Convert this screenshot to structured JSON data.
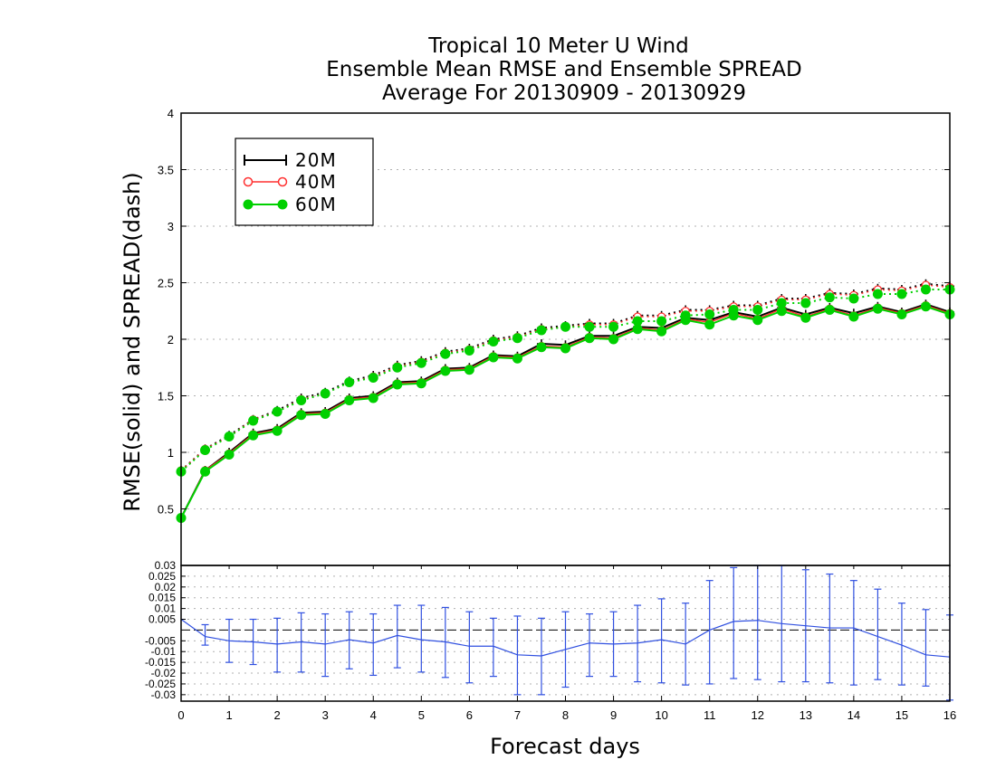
{
  "titles": {
    "line1": "Tropical 10 Meter U Wind",
    "line2": "Ensemble Mean RMSE and Ensemble SPREAD",
    "line3": "Average For 20130909 - 20130929"
  },
  "colors": {
    "20M": "#000000",
    "40M": "#ff3030",
    "60M": "#00d000",
    "diff": "#3050e0",
    "grid": "#b0b0b0"
  },
  "chart_data": [
    {
      "type": "line",
      "ylabel": "RMSE(solid) and SPREAD(dash)",
      "xlabel": "",
      "xlim": [
        0,
        16
      ],
      "ylim": [
        0,
        4
      ],
      "xticks": [
        "0",
        "1",
        "2",
        "3",
        "4",
        "5",
        "6",
        "7",
        "8",
        "9",
        "10",
        "11",
        "12",
        "13",
        "14",
        "15",
        "16"
      ],
      "yticks": [
        "0.5",
        "1",
        "1.5",
        "2",
        "2.5",
        "3",
        "3.5",
        "4"
      ],
      "grid": true,
      "legend_position": "top-left",
      "x": [
        0,
        0.5,
        1,
        1.5,
        2,
        2.5,
        3,
        3.5,
        4,
        4.5,
        5,
        5.5,
        6,
        6.5,
        7,
        7.5,
        8,
        8.5,
        9,
        9.5,
        10,
        10.5,
        11,
        11.5,
        12,
        12.5,
        13,
        13.5,
        14,
        14.5,
        15,
        15.5,
        16
      ],
      "series": [
        {
          "name": "20M",
          "rmse": [
            0.42,
            0.84,
            1.0,
            1.17,
            1.21,
            1.35,
            1.36,
            1.48,
            1.5,
            1.62,
            1.63,
            1.74,
            1.75,
            1.86,
            1.85,
            1.96,
            1.95,
            2.03,
            2.03,
            2.11,
            2.1,
            2.19,
            2.17,
            2.24,
            2.2,
            2.28,
            2.22,
            2.28,
            2.23,
            2.29,
            2.24,
            2.31,
            2.24
          ],
          "spread": [
            0.84,
            1.03,
            1.15,
            1.29,
            1.37,
            1.48,
            1.53,
            1.63,
            1.68,
            1.77,
            1.81,
            1.89,
            1.92,
            2.0,
            2.03,
            2.1,
            2.12,
            2.14,
            2.14,
            2.21,
            2.21,
            2.26,
            2.26,
            2.3,
            2.3,
            2.36,
            2.36,
            2.41,
            2.4,
            2.45,
            2.44,
            2.49,
            2.47
          ]
        },
        {
          "name": "40M",
          "rmse": [
            0.42,
            0.84,
            0.99,
            1.16,
            1.2,
            1.34,
            1.35,
            1.47,
            1.49,
            1.61,
            1.62,
            1.73,
            1.74,
            1.85,
            1.84,
            1.94,
            1.93,
            2.02,
            2.01,
            2.1,
            2.08,
            2.18,
            2.15,
            2.23,
            2.18,
            2.27,
            2.2,
            2.27,
            2.21,
            2.28,
            2.23,
            2.3,
            2.23
          ],
          "spread": [
            0.84,
            1.03,
            1.14,
            1.29,
            1.36,
            1.47,
            1.52,
            1.62,
            1.67,
            1.76,
            1.8,
            1.88,
            1.91,
            1.99,
            2.02,
            2.09,
            2.11,
            2.13,
            2.13,
            2.2,
            2.2,
            2.25,
            2.25,
            2.29,
            2.29,
            2.35,
            2.35,
            2.4,
            2.39,
            2.44,
            2.43,
            2.48,
            2.46
          ]
        },
        {
          "name": "60M",
          "rmse": [
            0.42,
            0.83,
            0.98,
            1.15,
            1.19,
            1.33,
            1.34,
            1.46,
            1.48,
            1.6,
            1.61,
            1.72,
            1.73,
            1.84,
            1.83,
            1.93,
            1.92,
            2.01,
            2.0,
            2.09,
            2.07,
            2.17,
            2.13,
            2.21,
            2.17,
            2.25,
            2.19,
            2.26,
            2.2,
            2.27,
            2.22,
            2.29,
            2.22
          ],
          "spread": [
            0.83,
            1.02,
            1.14,
            1.28,
            1.36,
            1.46,
            1.52,
            1.62,
            1.66,
            1.75,
            1.79,
            1.87,
            1.9,
            1.98,
            2.01,
            2.08,
            2.11,
            2.11,
            2.11,
            2.16,
            2.16,
            2.21,
            2.22,
            2.26,
            2.26,
            2.32,
            2.32,
            2.37,
            2.36,
            2.4,
            2.4,
            2.44,
            2.44
          ]
        }
      ]
    },
    {
      "type": "line",
      "xlabel": "Forecast days",
      "xlim": [
        0,
        16
      ],
      "ylim": [
        -0.033,
        0.03
      ],
      "yticks": [
        "0.03",
        "0.025",
        "0.02",
        "0.015",
        "0.01",
        "0.005",
        "-0.005",
        "-0.01",
        "-0.015",
        "-0.02",
        "-0.025",
        "-0.03"
      ],
      "grid": true,
      "zero_line": true,
      "x": [
        0,
        0.5,
        1,
        1.5,
        2,
        2.5,
        3,
        3.5,
        4,
        4.5,
        5,
        5.5,
        6,
        6.5,
        7,
        7.5,
        8,
        8.5,
        9,
        9.5,
        10,
        10.5,
        11,
        11.5,
        12,
        12.5,
        13,
        13.5,
        14,
        14.5,
        15,
        15.5,
        16
      ],
      "values": [
        0.005,
        -0.003,
        -0.005,
        -0.0055,
        -0.0065,
        -0.0055,
        -0.0065,
        -0.0045,
        -0.006,
        -0.0025,
        -0.0045,
        -0.0055,
        -0.0075,
        -0.0075,
        -0.0115,
        -0.012,
        -0.009,
        -0.006,
        -0.0065,
        -0.006,
        -0.0045,
        -0.0065,
        0.0,
        0.004,
        0.0045,
        0.003,
        0.002,
        0.001,
        0.001,
        -0.003,
        -0.007,
        -0.0115,
        -0.0125
      ],
      "error_low": [
        0.005,
        -0.007,
        -0.015,
        -0.016,
        -0.0195,
        -0.0195,
        -0.0215,
        -0.018,
        -0.021,
        -0.0175,
        -0.0195,
        -0.022,
        -0.0245,
        -0.0215,
        -0.03,
        -0.03,
        -0.0265,
        -0.0215,
        -0.0215,
        -0.024,
        -0.0245,
        -0.0255,
        -0.025,
        -0.0225,
        -0.023,
        -0.024,
        -0.024,
        -0.0245,
        -0.0255,
        -0.023,
        -0.0255,
        -0.026,
        -0.0325
      ],
      "error_high": [
        0.005,
        0.0025,
        0.005,
        0.005,
        0.0055,
        0.008,
        0.0075,
        0.0085,
        0.0075,
        0.0115,
        0.0115,
        0.0105,
        0.0085,
        0.0055,
        0.0065,
        0.0055,
        0.0085,
        0.0075,
        0.0085,
        0.0115,
        0.0145,
        0.0125,
        0.023,
        0.029,
        0.031,
        0.03,
        0.028,
        0.026,
        0.023,
        0.019,
        0.0125,
        0.0095,
        0.007
      ]
    }
  ]
}
